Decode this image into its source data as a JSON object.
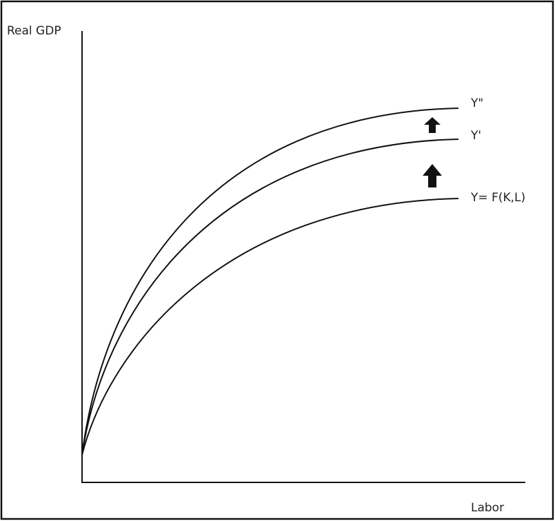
{
  "axes": {
    "y_label": "Real GDP",
    "x_label": "Labor"
  },
  "curves": [
    {
      "label": "Y\""
    },
    {
      "label": "Y'"
    },
    {
      "label": "Y= F(K,L)"
    }
  ]
}
